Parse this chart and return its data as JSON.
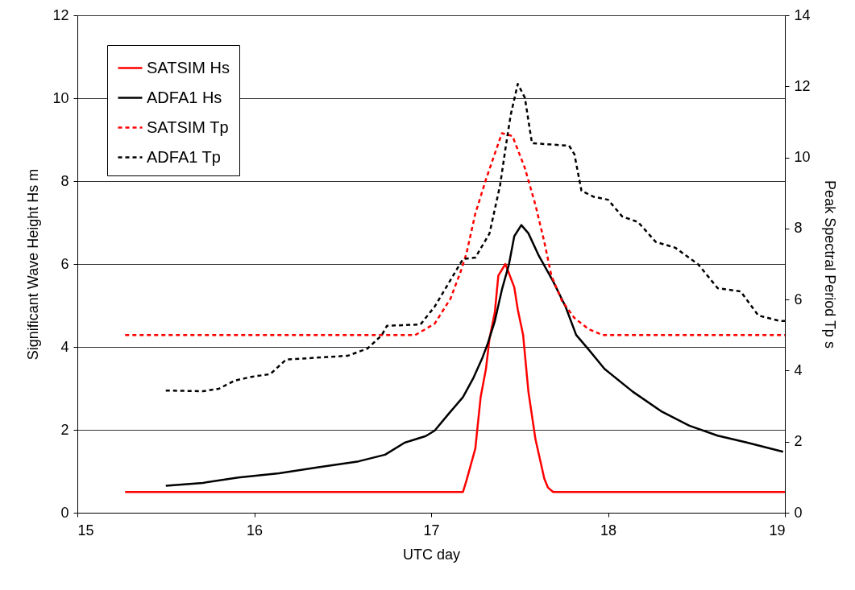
{
  "chart_data": {
    "type": "line",
    "xlabel": "UTC day",
    "ylabel": "Significant Wave Height  Hs m",
    "y2label": "Peak Spectral Period  Tp s",
    "xlim": [
      15,
      19
    ],
    "xticks": [
      15,
      16,
      17,
      18,
      19
    ],
    "ylim": [
      0,
      12
    ],
    "yticks": [
      0,
      2,
      4,
      6,
      8,
      10,
      12
    ],
    "y2lim": [
      0,
      14
    ],
    "y2ticks": [
      0,
      2,
      4,
      6,
      8,
      10,
      12,
      14
    ],
    "grid": "y",
    "legend": "top left",
    "marker": "none",
    "series": [
      {
        "name": "SATSIM Hs",
        "color": "#ff0000",
        "line_style": "solid",
        "x": [
          15.27,
          17.18,
          17.2,
          17.25,
          17.26,
          17.28,
          17.31,
          17.33,
          17.36,
          17.38,
          17.42,
          17.47,
          17.49,
          17.52,
          17.55,
          17.59,
          17.64,
          17.66,
          17.69,
          19
        ],
        "values": [
          0.5,
          0.5,
          0.78,
          1.55,
          1.97,
          2.79,
          3.47,
          4.2,
          4.83,
          5.72,
          6.0,
          5.44,
          4.9,
          4.29,
          2.92,
          1.77,
          0.82,
          0.61,
          0.5,
          0.5
        ]
      },
      {
        "name": "ADFA1 Hs",
        "color": "#000000",
        "line_style": "solid",
        "x": [
          15.5,
          15.71,
          15.91,
          16.14,
          16.37,
          16.59,
          16.74,
          16.85,
          16.97,
          17.02,
          17.1,
          17.18,
          17.24,
          17.29,
          17.32,
          17.36,
          17.4,
          17.44,
          17.47,
          17.51,
          17.55,
          17.61,
          17.69,
          17.76,
          17.82,
          17.89,
          17.98,
          18.14,
          18.3,
          18.46,
          18.62,
          18.78,
          18.99
        ],
        "values": [
          0.65,
          0.72,
          0.85,
          0.95,
          1.1,
          1.24,
          1.4,
          1.69,
          1.85,
          1.98,
          2.39,
          2.79,
          3.26,
          3.74,
          4.08,
          4.62,
          5.38,
          5.99,
          6.67,
          6.94,
          6.74,
          6.19,
          5.58,
          4.97,
          4.29,
          3.94,
          3.47,
          2.92,
          2.45,
          2.1,
          1.86,
          1.7,
          1.47
        ]
      },
      {
        "name": "SATSIM Tp",
        "color": "#ff0000",
        "line_style": "dashed",
        "axis": "y2",
        "x": [
          15.27,
          16.91,
          17.02,
          17.11,
          17.17,
          17.2,
          17.25,
          17.31,
          17.4,
          17.46,
          17.53,
          17.59,
          17.64,
          17.68,
          17.74,
          17.81,
          17.89,
          17.97,
          19
        ],
        "values": [
          5.0,
          5.0,
          5.32,
          6.03,
          6.83,
          7.3,
          8.42,
          9.38,
          10.68,
          10.6,
          9.7,
          8.66,
          7.62,
          6.67,
          5.96,
          5.48,
          5.17,
          5.0,
          5.0
        ]
      },
      {
        "name": "ADFA1 Tp",
        "color": "#000000",
        "line_style": "dashed",
        "axis": "y2",
        "x": [
          15.5,
          15.71,
          15.8,
          15.89,
          15.99,
          16.09,
          16.18,
          16.53,
          16.64,
          16.72,
          16.75,
          16.94,
          17.02,
          17.18,
          17.25,
          17.33,
          17.39,
          17.42,
          17.45,
          17.49,
          17.53,
          17.57,
          17.78,
          17.81,
          17.85,
          17.92,
          18.0,
          18.08,
          18.17,
          18.27,
          18.38,
          18.51,
          18.62,
          18.75,
          18.85,
          18.97,
          19
        ],
        "values": [
          3.44,
          3.42,
          3.49,
          3.72,
          3.83,
          3.9,
          4.31,
          4.42,
          4.62,
          4.99,
          5.26,
          5.3,
          5.8,
          7.14,
          7.18,
          7.86,
          9.22,
          10.24,
          11.2,
          12.07,
          11.68,
          10.4,
          10.33,
          10.09,
          9.06,
          8.89,
          8.81,
          8.34,
          8.18,
          7.62,
          7.46,
          6.99,
          6.32,
          6.23,
          5.55,
          5.4,
          5.4
        ]
      }
    ]
  }
}
